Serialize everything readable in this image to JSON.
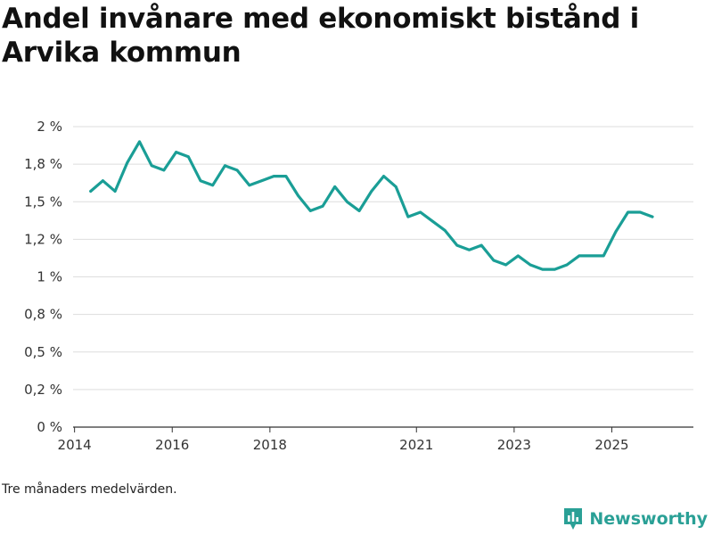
{
  "title": "Andel invånare med ekonomiskt bistånd i Arvika kommun",
  "footnote": "Tre månaders medelvärden.",
  "brand": {
    "name": "Newsworthy",
    "icon": "bar-chart-logo-icon"
  },
  "colors": {
    "line": "#1a9e96",
    "grid": "#dddddd",
    "axis": "#333333",
    "brand": "#2aa096"
  },
  "chart_data": {
    "type": "line",
    "title": "Andel invånare med ekonomiskt bistånd i Arvika kommun",
    "xlabel": "",
    "ylabel": "",
    "xlim": [
      2013.97,
      2026.67
    ],
    "ylim": [
      0,
      2
    ],
    "grid": true,
    "x_ticks": [
      {
        "value": 2014,
        "label": "2014"
      },
      {
        "value": 2016,
        "label": "2016"
      },
      {
        "value": 2018,
        "label": "2018"
      },
      {
        "value": 2021,
        "label": "2021"
      },
      {
        "value": 2023,
        "label": "2023"
      },
      {
        "value": 2025,
        "label": "2025"
      }
    ],
    "y_ticks": [
      {
        "value": 0,
        "label": "0 %"
      },
      {
        "value": 0.25,
        "label": "0,2 %"
      },
      {
        "value": 0.5,
        "label": "0,5 %"
      },
      {
        "value": 0.75,
        "label": "0,8 %"
      },
      {
        "value": 1.0,
        "label": "1 %"
      },
      {
        "value": 1.25,
        "label": "1,2 %"
      },
      {
        "value": 1.5,
        "label": "1,5 %"
      },
      {
        "value": 1.75,
        "label": "1,8 %"
      },
      {
        "value": 2.0,
        "label": "2 %"
      }
    ],
    "series": [
      {
        "name": "Andel invånare med ekonomiskt bistånd",
        "x": [
          2014.33,
          2014.58,
          2014.83,
          2015.08,
          2015.33,
          2015.58,
          2015.83,
          2016.08,
          2016.33,
          2016.58,
          2016.83,
          2017.08,
          2017.33,
          2017.58,
          2017.83,
          2018.08,
          2018.33,
          2018.58,
          2018.83,
          2019.08,
          2019.33,
          2019.58,
          2019.83,
          2020.08,
          2020.33,
          2020.58,
          2020.83,
          2021.08,
          2021.33,
          2021.58,
          2021.83,
          2022.08,
          2022.33,
          2022.58,
          2022.83,
          2023.08,
          2023.33,
          2023.58,
          2023.83,
          2024.08,
          2024.33,
          2024.58,
          2024.83,
          2025.08,
          2025.33,
          2025.58,
          2025.83
        ],
        "values": [
          1.57,
          1.64,
          1.57,
          1.76,
          1.9,
          1.74,
          1.71,
          1.83,
          1.8,
          1.64,
          1.61,
          1.74,
          1.71,
          1.61,
          1.64,
          1.67,
          1.67,
          1.54,
          1.44,
          1.47,
          1.6,
          1.5,
          1.44,
          1.57,
          1.67,
          1.6,
          1.4,
          1.43,
          1.37,
          1.31,
          1.21,
          1.18,
          1.21,
          1.11,
          1.08,
          1.14,
          1.08,
          1.05,
          1.05,
          1.08,
          1.14,
          1.14,
          1.14,
          1.3,
          1.43,
          1.43,
          1.4
        ]
      }
    ]
  }
}
